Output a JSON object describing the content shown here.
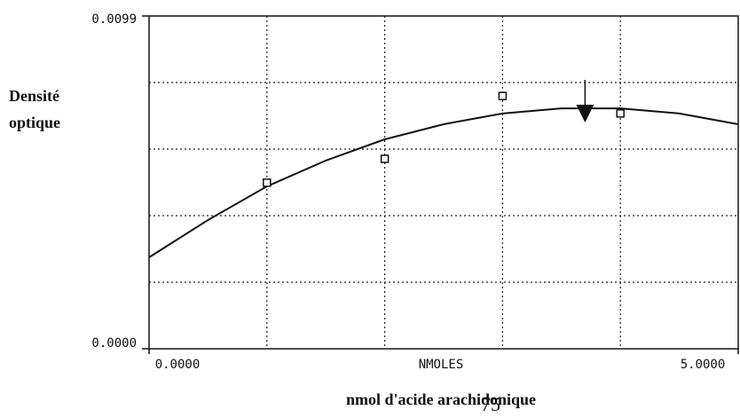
{
  "chart_data": {
    "type": "scatter",
    "y_label_lines": [
      "Densité",
      "optique"
    ],
    "x_label": "nmol d'acide arachidonique",
    "x_axis_caption": "NMOLES",
    "page_number": "75",
    "xlim": [
      0,
      5
    ],
    "ylim": [
      0,
      0.0099
    ],
    "xticks": [
      {
        "value": 0,
        "label": "0.0000"
      },
      {
        "value": 5,
        "label": "5.0000"
      }
    ],
    "yticks": [
      {
        "value": 0,
        "label": "0.0000"
      },
      {
        "value": 0.0099,
        "label": "0.0099"
      }
    ],
    "xgrid": [
      1,
      2,
      3,
      4
    ],
    "ygrid": [
      0.00198,
      0.00396,
      0.00594,
      0.00792
    ],
    "grid": true,
    "points": {
      "x": [
        1,
        2,
        3,
        4
      ],
      "values": [
        0.00494,
        0.00565,
        0.00752,
        0.007
      ]
    },
    "curve": {
      "x": [
        0,
        0.5,
        1,
        1.5,
        2,
        2.5,
        3,
        3.5,
        4,
        4.5,
        5
      ],
      "values": [
        0.00272,
        0.00383,
        0.00483,
        0.0056,
        0.00623,
        0.00668,
        0.007,
        0.00715,
        0.00715,
        0.007,
        0.00668
      ]
    },
    "annotation_x": 3.7
  }
}
